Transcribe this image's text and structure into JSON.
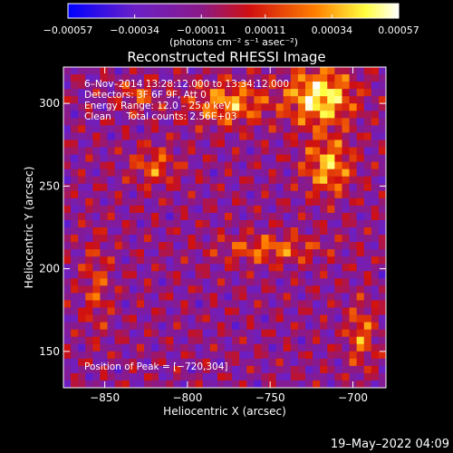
{
  "chart_data": {
    "type": "heatmap",
    "title": "Reconstructed RHESSI Image",
    "xlabel": "Heliocentric X (arcsec)",
    "ylabel": "Heliocentric Y (arcsec)",
    "xlim": [
      -875,
      -680
    ],
    "ylim": [
      128,
      322
    ],
    "xticks": [
      -850,
      -800,
      -750,
      -700
    ],
    "xtick_labels": [
      "−850",
      "−800",
      "−750",
      "−700"
    ],
    "yticks": [
      150,
      200,
      250,
      300
    ],
    "ytick_labels": [
      "150",
      "200",
      "250",
      "300"
    ],
    "colorbar": {
      "colormap": "blue-purple-red-yellow-white",
      "range": [
        -0.00057,
        0.00057
      ],
      "tick_values": [
        -0.00057,
        -0.00034,
        -0.00011,
        0.00011,
        0.00034,
        0.00057
      ],
      "tick_labels": [
        "−0.00057",
        "−0.00034",
        "−0.00011",
        "0.00011",
        "0.00034",
        "0.00057"
      ],
      "unit_label": "(photons cm⁻² s⁻¹ asec⁻²)"
    },
    "annotations": {
      "time_range": "6–Nov–2014 13:28:12.000 to 13:34:12.000",
      "detectors": "Detectors: 3F 6F 9F, Att 0",
      "energy_range": "Energy Range: 12.0 – 25.0 keV",
      "method": "Clean     Total counts: 2.56E+03",
      "peak": "Position of Peak = [−720,304]"
    },
    "peak_position": [
      -720,
      304
    ],
    "sources": [
      {
        "x": -720,
        "y": 304,
        "sx": 14,
        "sy": 12,
        "amp": 1.0
      },
      {
        "x": -715,
        "y": 262,
        "sx": 10,
        "sy": 12,
        "amp": 0.75
      },
      {
        "x": -775,
        "y": 300,
        "sx": 16,
        "sy": 9,
        "amp": 0.7
      },
      {
        "x": -820,
        "y": 262,
        "sx": 10,
        "sy": 8,
        "amp": 0.5
      },
      {
        "x": -750,
        "y": 212,
        "sx": 22,
        "sy": 6,
        "amp": 0.55
      },
      {
        "x": -695,
        "y": 160,
        "sx": 6,
        "sy": 14,
        "amp": 0.55
      },
      {
        "x": -830,
        "y": 305,
        "sx": 8,
        "sy": 6,
        "amp": 0.45
      },
      {
        "x": -855,
        "y": 190,
        "sx": 6,
        "sy": 20,
        "amp": 0.4
      }
    ]
  },
  "footer": {
    "timestamp": "19–May–2022 04:09"
  }
}
